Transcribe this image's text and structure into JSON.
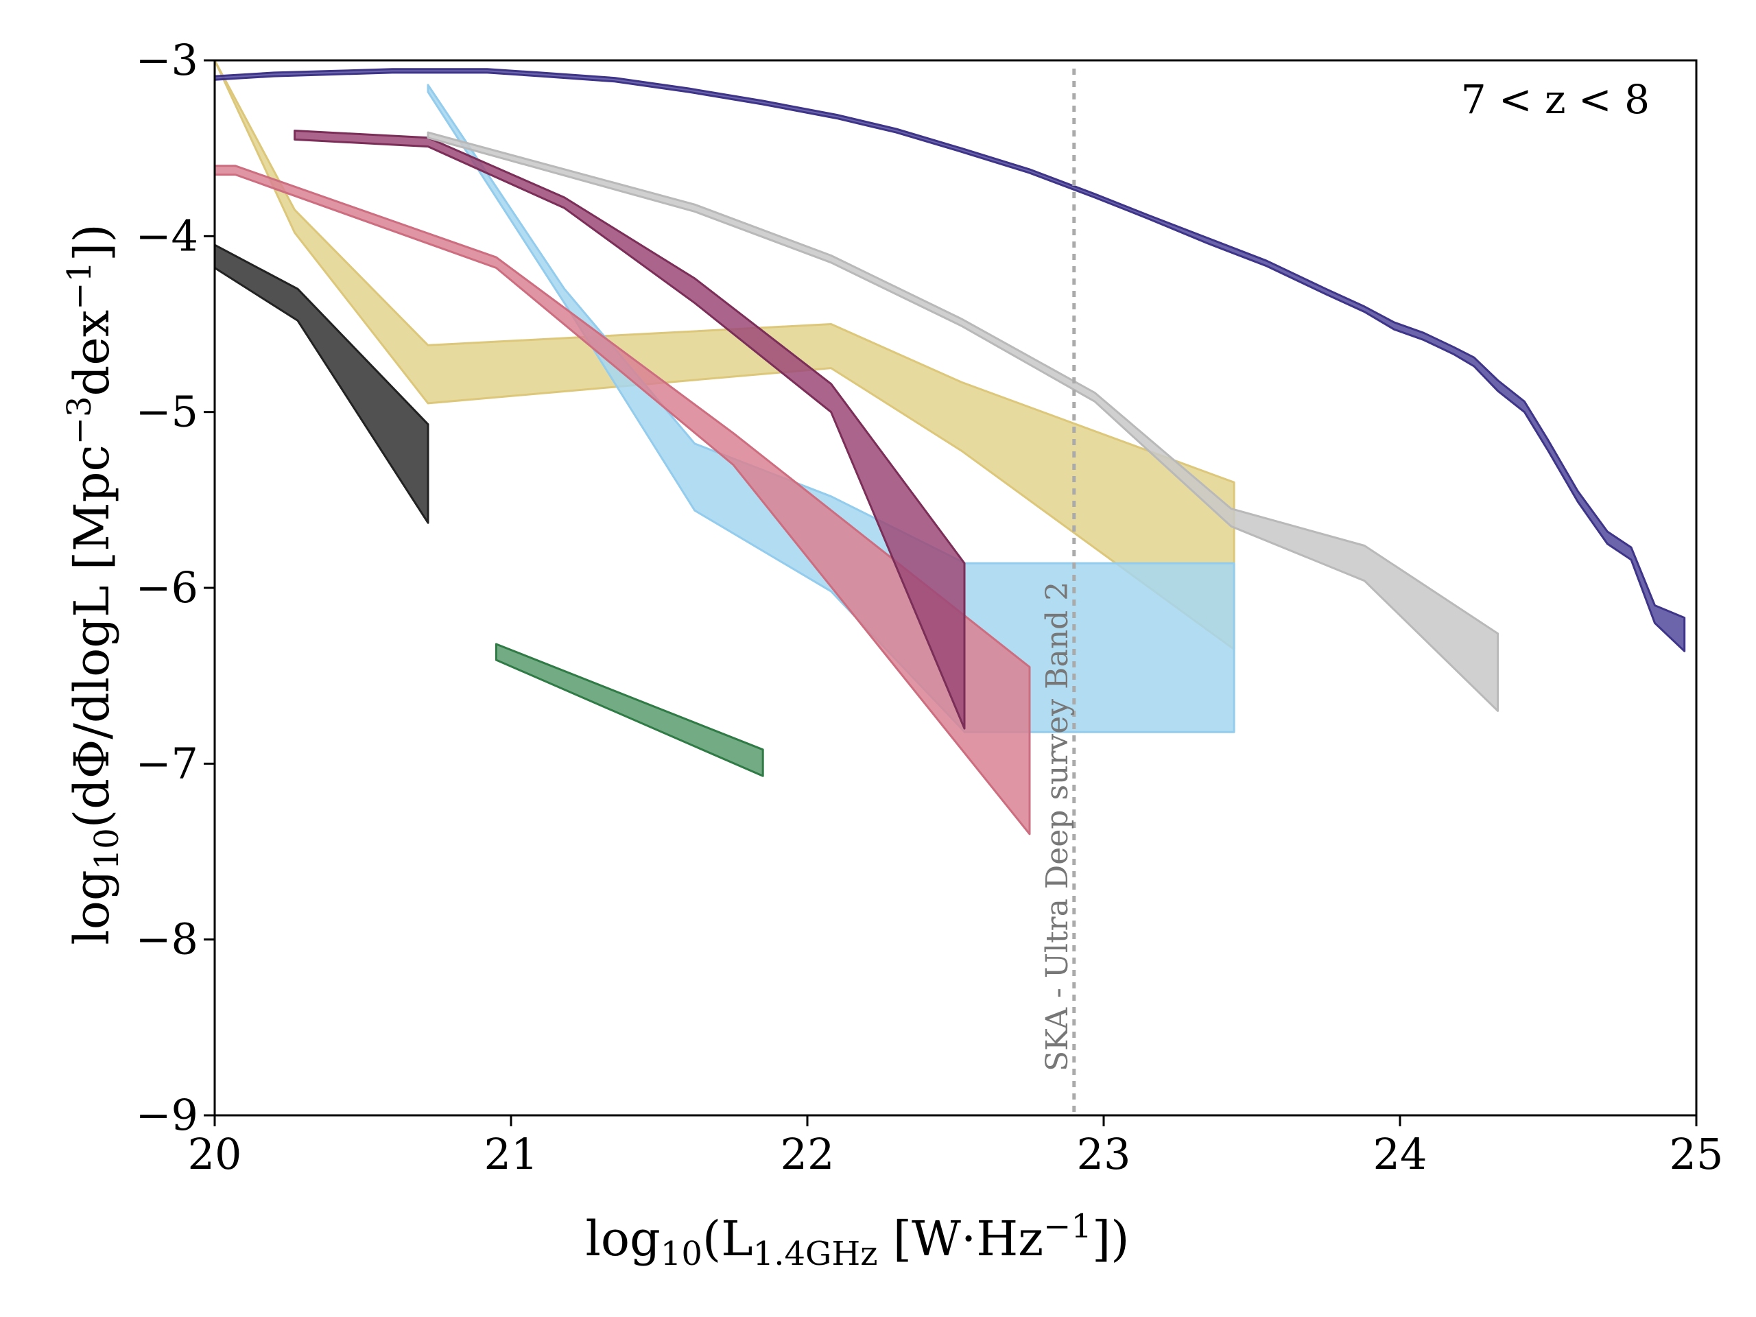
{
  "chart_data": {
    "type": "area",
    "title": "",
    "xlabel": {
      "prefix": "log",
      "sub": "10",
      "open": "(L",
      "lsub": "1.4GHz",
      "mid": " [W·Hz",
      "sup": "−1",
      "close": "])"
    },
    "ylabel": {
      "prefix": "log",
      "sub": "10",
      "mid": "(dΦ/dlogL [Mpc",
      "sup1": "−3",
      "mid2": "dex",
      "sup2": "−1",
      "close": "])"
    },
    "xlim": [
      20,
      25
    ],
    "ylim": [
      -9,
      -3
    ],
    "xticks": [
      20,
      21,
      22,
      23,
      24,
      25
    ],
    "xtick_labels": [
      "20",
      "21",
      "22",
      "23",
      "24",
      "25"
    ],
    "yticks": [
      -3,
      -4,
      -5,
      -6,
      -7,
      -8,
      -9
    ],
    "ytick_labels": [
      "−3",
      "−4",
      "−5",
      "−6",
      "−7",
      "−8",
      "−9"
    ],
    "annotation": "7 < z < 8",
    "vline": {
      "x": 22.9,
      "label": "SKA - Ultra Deep survey Band 2",
      "color": "#aaaaaa"
    },
    "series": [
      {
        "name": "black",
        "color": "#333333",
        "stroke": "#222222",
        "x": [
          20.0,
          20.28,
          20.72
        ],
        "upper": [
          -4.05,
          -4.3,
          -5.07
        ],
        "lower": [
          -4.18,
          -4.48,
          -5.63
        ]
      },
      {
        "name": "gold",
        "color": "#e3d48e",
        "stroke": "#dcc77a",
        "x": [
          20.0,
          20.27,
          20.72,
          22.08,
          22.52,
          23.44
        ],
        "upper": [
          -3.0,
          -3.85,
          -4.62,
          -4.5,
          -4.83,
          -5.4
        ],
        "lower": [
          -3.0,
          -3.98,
          -4.95,
          -4.75,
          -5.22,
          -6.35
        ]
      },
      {
        "name": "sky",
        "color": "#a5d6f0",
        "stroke": "#93ccec",
        "x": [
          20.72,
          21.18,
          21.62,
          22.08,
          22.52,
          22.53,
          23.44
        ],
        "upper": [
          -3.14,
          -4.3,
          -5.18,
          -5.48,
          -5.85,
          -5.86,
          -5.86
        ],
        "lower": [
          -3.18,
          -4.38,
          -5.56,
          -6.02,
          -6.8,
          -6.82,
          -6.82
        ]
      },
      {
        "name": "rose",
        "color": "#d98293",
        "stroke": "#cc6e80",
        "x": [
          20.0,
          20.07,
          20.95,
          21.75,
          22.75
        ],
        "upper": [
          -3.6,
          -3.6,
          -4.12,
          -5.12,
          -6.45
        ],
        "lower": [
          -3.65,
          -3.65,
          -4.18,
          -5.3,
          -7.4
        ]
      },
      {
        "name": "plum",
        "color": "#9c4a78",
        "stroke": "#7a2e58",
        "x": [
          20.27,
          20.72,
          21.18,
          21.62,
          22.08,
          22.53
        ],
        "upper": [
          -3.4,
          -3.44,
          -3.78,
          -4.24,
          -4.84,
          -5.86
        ],
        "lower": [
          -3.45,
          -3.49,
          -3.84,
          -4.38,
          -5.0,
          -6.8
        ]
      },
      {
        "name": "green",
        "color": "#5a9e6e",
        "stroke": "#2f7a45",
        "x": [
          20.95,
          21.85
        ],
        "upper": [
          -6.32,
          -6.92
        ],
        "lower": [
          -6.41,
          -7.07
        ]
      },
      {
        "name": "gray",
        "color": "#c8c8c8",
        "stroke": "#b9b9b9",
        "x": [
          20.72,
          21.62,
          22.08,
          22.52,
          22.97,
          23.43,
          23.88,
          24.33
        ],
        "upper": [
          -3.41,
          -3.82,
          -4.11,
          -4.47,
          -4.89,
          -5.55,
          -5.76,
          -6.26
        ],
        "lower": [
          -3.44,
          -3.86,
          -4.15,
          -4.51,
          -4.94,
          -5.65,
          -5.96,
          -6.7
        ]
      },
      {
        "name": "indigo",
        "color": "#544a9e",
        "stroke": "#3f3588",
        "x": [
          20.0,
          20.2,
          20.4,
          20.6,
          20.8,
          20.92,
          21.1,
          21.35,
          21.6,
          21.85,
          22.1,
          22.3,
          22.52,
          22.75,
          22.97,
          23.15,
          23.35,
          23.55,
          23.75,
          23.88,
          23.98,
          24.08,
          24.18,
          24.25,
          24.33,
          24.42,
          24.5,
          24.6,
          24.7,
          24.78,
          24.86,
          24.96
        ],
        "upper": [
          -3.09,
          -3.07,
          -3.06,
          -3.05,
          -3.05,
          -3.05,
          -3.07,
          -3.1,
          -3.16,
          -3.23,
          -3.31,
          -3.39,
          -3.5,
          -3.62,
          -3.76,
          -3.88,
          -4.01,
          -4.14,
          -4.3,
          -4.4,
          -4.49,
          -4.55,
          -4.63,
          -4.69,
          -4.82,
          -4.94,
          -5.16,
          -5.45,
          -5.68,
          -5.77,
          -6.1,
          -6.17
        ],
        "lower": [
          -3.11,
          -3.09,
          -3.08,
          -3.07,
          -3.07,
          -3.07,
          -3.09,
          -3.12,
          -3.18,
          -3.25,
          -3.33,
          -3.41,
          -3.52,
          -3.64,
          -3.78,
          -3.9,
          -4.04,
          -4.17,
          -4.33,
          -4.43,
          -4.53,
          -4.59,
          -4.67,
          -4.74,
          -4.88,
          -5.0,
          -5.22,
          -5.51,
          -5.75,
          -5.84,
          -6.2,
          -6.36
        ]
      }
    ]
  }
}
